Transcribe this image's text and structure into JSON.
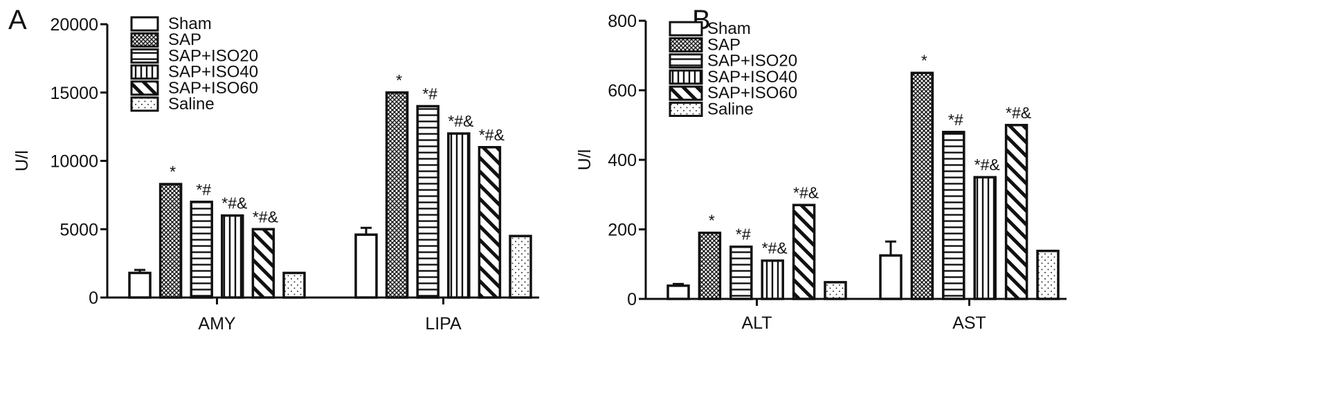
{
  "chart_data": [
    {
      "panel": "A",
      "type": "bar",
      "title": "",
      "xlabel": "",
      "ylabel": "U/l",
      "ylim": [
        0,
        20000
      ],
      "yticks": [
        0,
        5000,
        10000,
        15000,
        20000
      ],
      "categories": [
        "AMY",
        "LIPA"
      ],
      "legend": {
        "placement": "top-left"
      },
      "series": [
        {
          "name": "Sham",
          "pattern": "open",
          "values": [
            1800,
            4600
          ],
          "errors": [
            220,
            500
          ],
          "annotations": [
            "",
            ""
          ]
        },
        {
          "name": "SAP",
          "pattern": "crosshatch",
          "values": [
            8300,
            15000
          ],
          "errors": [
            0,
            0
          ],
          "annotations": [
            "*",
            "*"
          ]
        },
        {
          "name": "SAP+ISO20",
          "pattern": "horizontal-lines",
          "values": [
            7000,
            14000
          ],
          "errors": [
            0,
            0
          ],
          "annotations": [
            "*#",
            "*#"
          ]
        },
        {
          "name": "SAP+ISO40",
          "pattern": "vertical-lines",
          "values": [
            6000,
            12000
          ],
          "errors": [
            0,
            0
          ],
          "annotations": [
            "*#&",
            "*#&"
          ]
        },
        {
          "name": "SAP+ISO60",
          "pattern": "diagonal-lines",
          "values": [
            5000,
            11000
          ],
          "errors": [
            0,
            0
          ],
          "annotations": [
            "*#&",
            "*#&"
          ]
        },
        {
          "name": "Saline",
          "pattern": "dots",
          "values": [
            1800,
            4500
          ],
          "errors": [
            0,
            0
          ],
          "annotations": [
            "",
            ""
          ]
        }
      ]
    },
    {
      "panel": "B",
      "type": "bar",
      "title": "",
      "xlabel": "",
      "ylabel": "U/l",
      "ylim": [
        0,
        800
      ],
      "yticks": [
        0,
        200,
        400,
        600,
        800
      ],
      "categories": [
        "ALT",
        "AST"
      ],
      "legend": {
        "placement": "top-left"
      },
      "series": [
        {
          "name": "Sham",
          "pattern": "open",
          "values": [
            38,
            125
          ],
          "errors": [
            5,
            40
          ],
          "annotations": [
            "",
            ""
          ]
        },
        {
          "name": "SAP",
          "pattern": "crosshatch",
          "values": [
            190,
            650
          ],
          "errors": [
            0,
            0
          ],
          "annotations": [
            "*",
            "*"
          ]
        },
        {
          "name": "SAP+ISO20",
          "pattern": "horizontal-lines",
          "values": [
            150,
            480
          ],
          "errors": [
            0,
            0
          ],
          "annotations": [
            "*#",
            "*#"
          ]
        },
        {
          "name": "SAP+ISO40",
          "pattern": "vertical-lines",
          "values": [
            110,
            350
          ],
          "errors": [
            0,
            0
          ],
          "annotations": [
            "*#&",
            "*#&"
          ]
        },
        {
          "name": "SAP+ISO60",
          "pattern": "diagonal-lines",
          "values": [
            270,
            500
          ],
          "errors": [
            0,
            0
          ],
          "annotations": [
            "*#&",
            "*#&"
          ]
        },
        {
          "name": "Saline",
          "pattern": "dots",
          "values": [
            48,
            138
          ],
          "errors": [
            0,
            0
          ],
          "annotations": [
            "",
            ""
          ]
        }
      ]
    }
  ]
}
